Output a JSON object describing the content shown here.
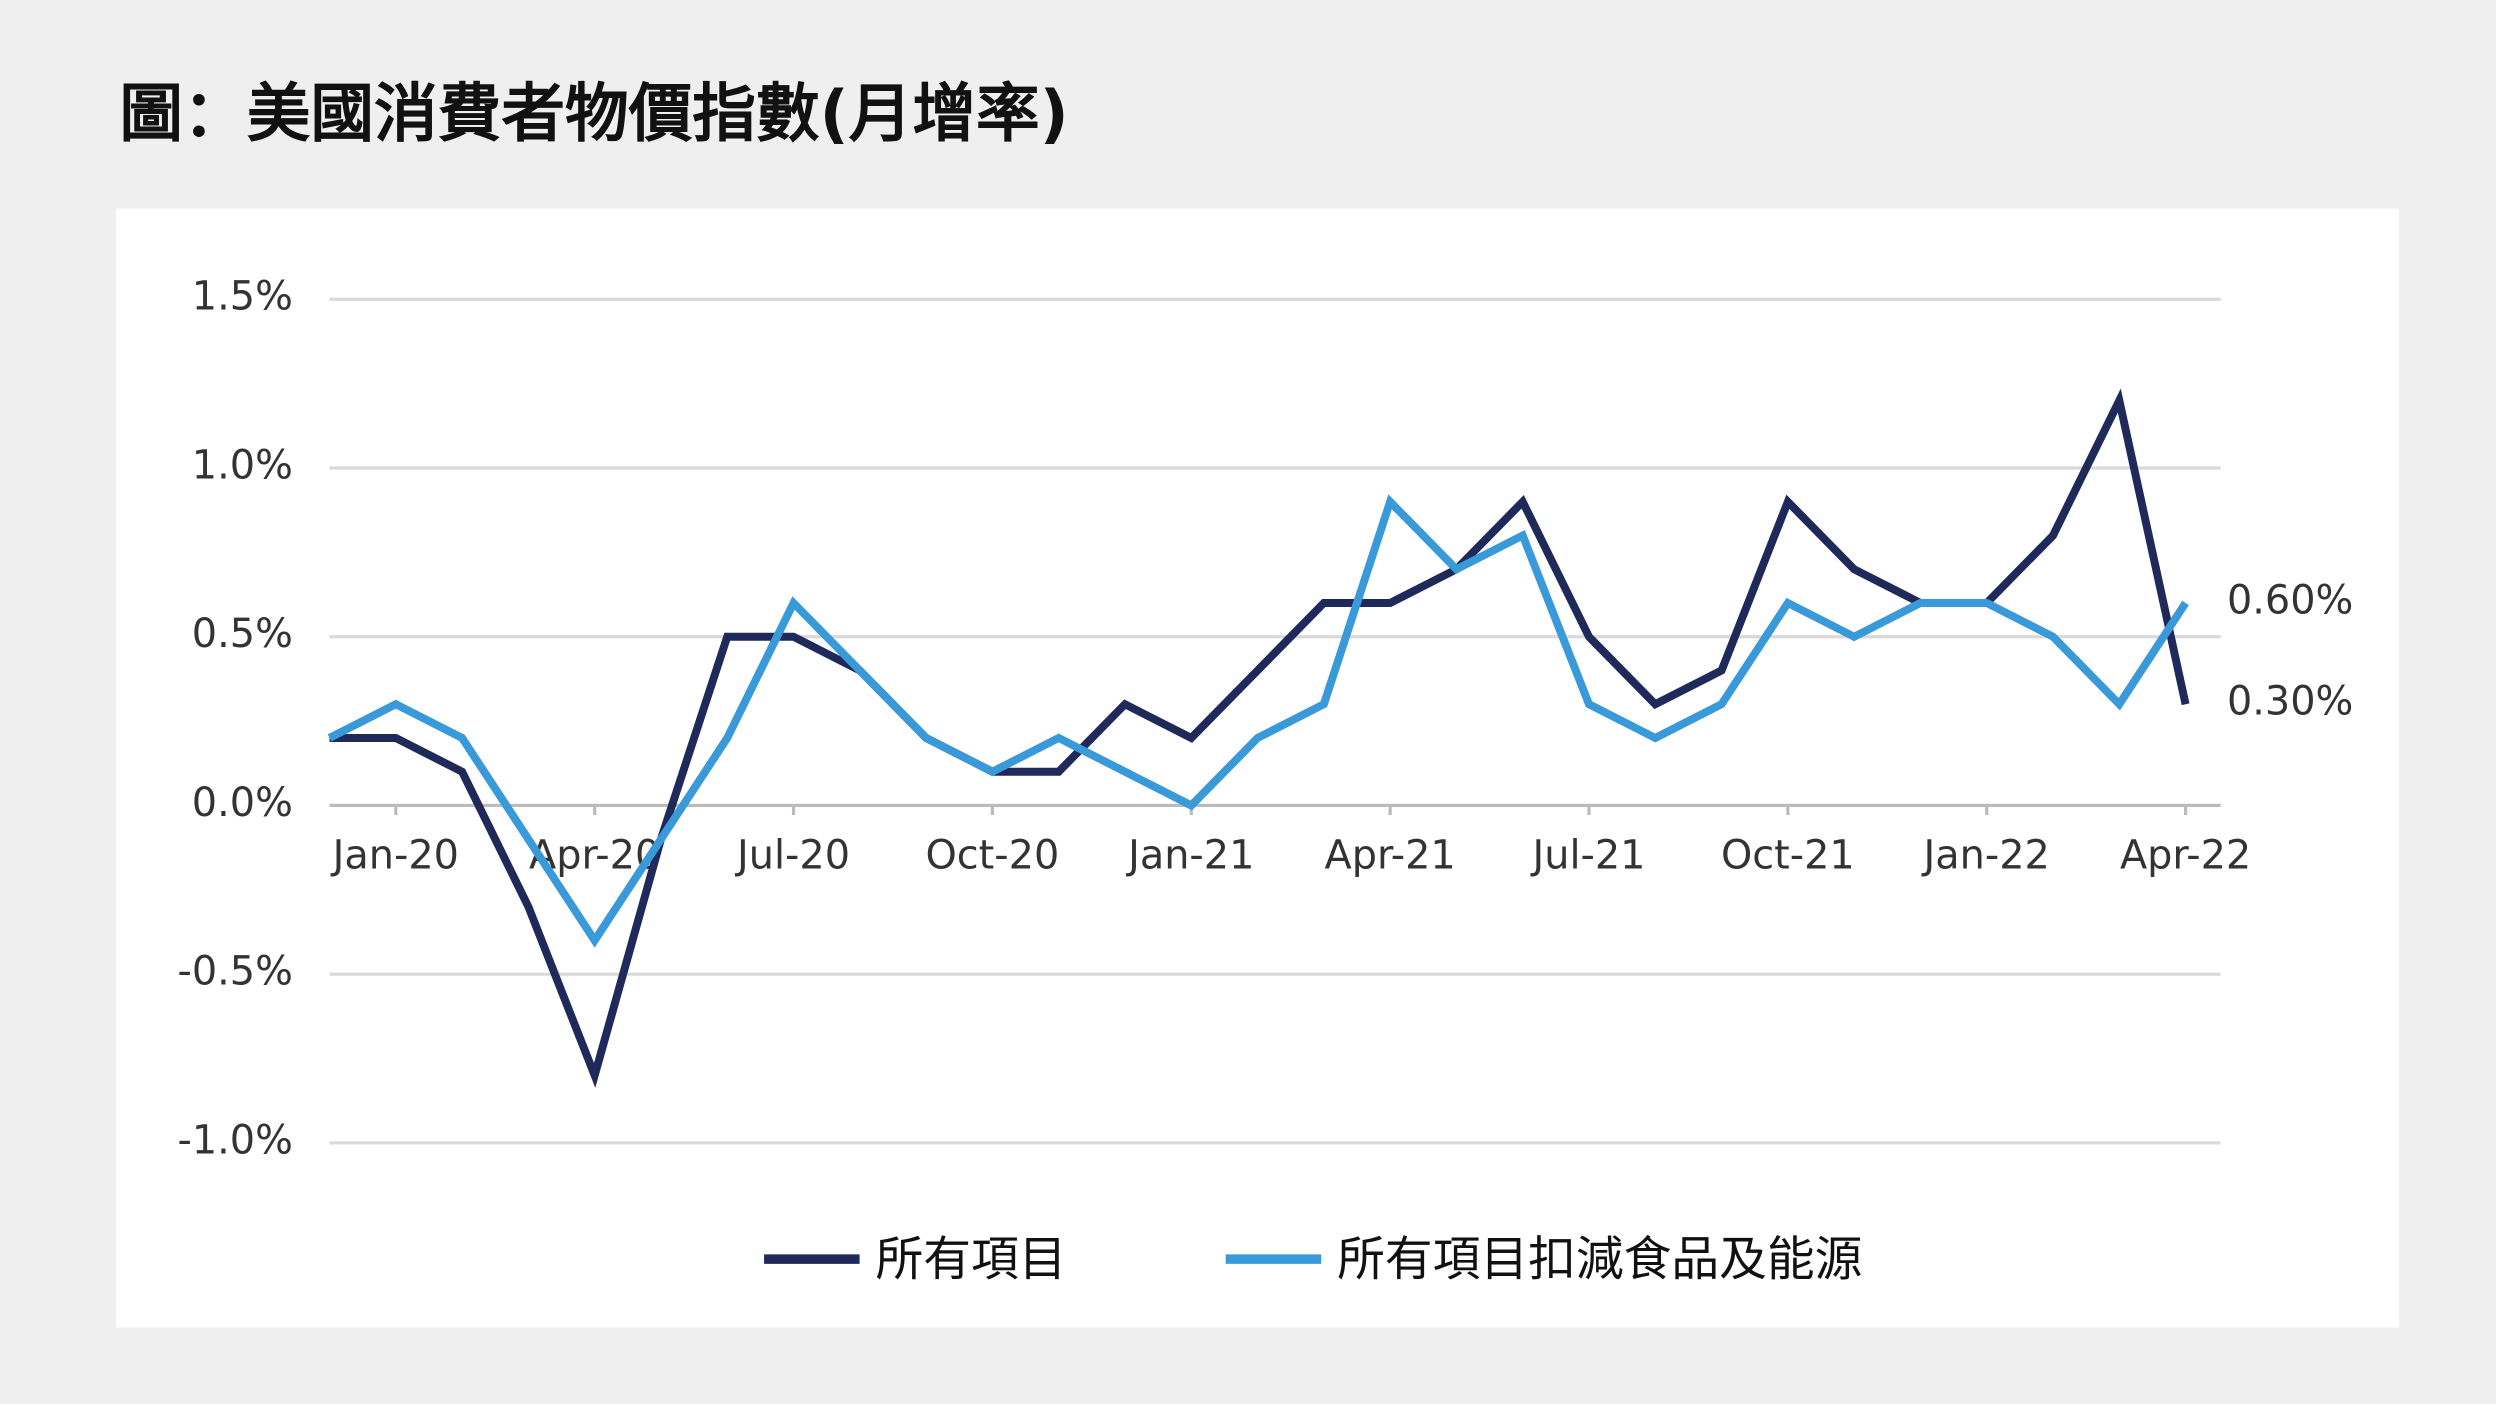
{
  "chart_data": {
    "type": "line",
    "title": "圖：美國消費者物價指數(月增率)",
    "categories": [
      null,
      "Jan-20",
      null,
      null,
      "Apr-20",
      null,
      null,
      "Jul-20",
      null,
      null,
      "Oct-20",
      null,
      null,
      "Jan-21",
      null,
      null,
      "Apr-21",
      null,
      null,
      "Jul-21",
      null,
      null,
      "Oct-21",
      null,
      null,
      "Jan-22",
      null,
      null,
      "Apr-22"
    ],
    "series": [
      {
        "name": "所有項目",
        "color": "#1f2a5a",
        "values": [
          0.2,
          0.2,
          0.1,
          -0.3,
          -0.8,
          -0.1,
          0.5,
          0.5,
          0.4,
          0.2,
          0.1,
          0.1,
          0.3,
          0.2,
          0.4,
          0.6,
          0.6,
          0.7,
          0.9,
          0.5,
          0.3,
          0.4,
          0.9,
          0.7,
          0.6,
          0.6,
          0.8,
          1.2,
          0.3
        ]
      },
      {
        "name": "所有項目扣減食品及能源",
        "color": "#3a9ad9",
        "values": [
          0.2,
          0.3,
          0.2,
          -0.1,
          -0.4,
          -0.1,
          0.2,
          0.6,
          0.4,
          0.2,
          0.1,
          0.2,
          0.1,
          0.0,
          0.2,
          0.3,
          0.9,
          0.7,
          0.8,
          0.3,
          0.2,
          0.3,
          0.6,
          0.5,
          0.6,
          0.6,
          0.5,
          0.3,
          0.6
        ]
      }
    ],
    "annotations": [
      {
        "text": "0.60%",
        "value": 0.6
      },
      {
        "text": "0.30%",
        "value": 0.3
      }
    ],
    "ylim": [
      -1.0,
      1.5
    ],
    "yticks": [
      {
        "value": -1.0,
        "label": "-1.0%"
      },
      {
        "value": -0.5,
        "label": "-0.5%"
      },
      {
        "value": 0.0,
        "label": "0.0%"
      },
      {
        "value": 0.5,
        "label": "0.5%"
      },
      {
        "value": 1.0,
        "label": "1.0%"
      },
      {
        "value": 1.5,
        "label": "1.5%"
      }
    ],
    "grid": true,
    "legend": "bottom"
  }
}
